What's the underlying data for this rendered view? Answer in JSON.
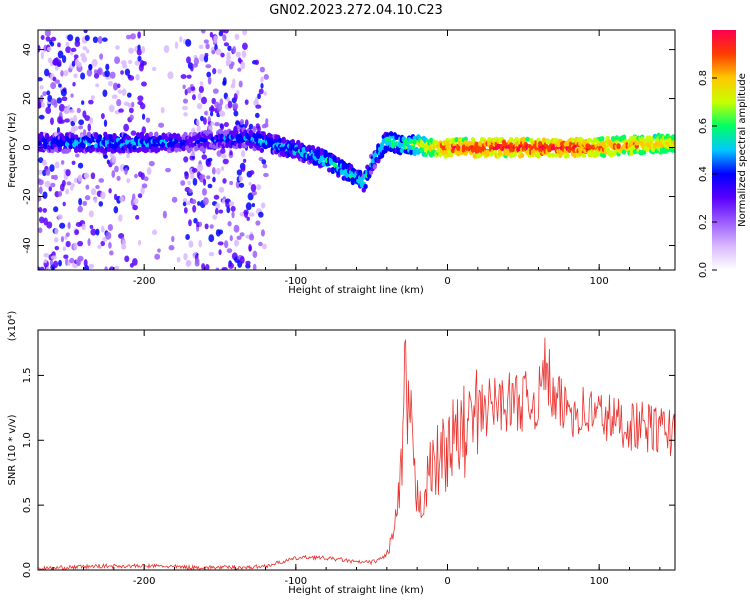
{
  "title": "GN02.2023.272.04.10.C23",
  "chart_data": [
    {
      "type": "heatmap",
      "xlabel": "Height of straight line (km)",
      "ylabel": "Frequency (Hz)",
      "xlim": [
        -270,
        150
      ],
      "ylim": [
        -50,
        48
      ],
      "x_ticks": [
        -200,
        -100,
        0,
        100
      ],
      "x_tick_labels": [
        "-200",
        "-100",
        "0",
        "100"
      ],
      "y_ticks": [
        -40,
        -20,
        0,
        20,
        40
      ],
      "y_tick_labels": [
        "-40",
        "-20",
        "0",
        "20",
        "40"
      ],
      "colorbar": {
        "label": "Normalized spectral amplitude",
        "range": [
          0,
          1
        ],
        "ticks": [
          0,
          0.2,
          0.4,
          0.6,
          0.8
        ],
        "tick_labels": [
          "0.0",
          "0.2",
          "0.4",
          "0.6",
          "0.8"
        ],
        "colors": [
          "#ffffff",
          "#d9b8ff",
          "#9b5cff",
          "#5a00ff",
          "#0000ff",
          "#00c8ff",
          "#00ff64",
          "#c8ff00",
          "#ffc800",
          "#ff3c00",
          "#ff0050"
        ]
      },
      "ridge": {
        "x": [
          -260,
          -240,
          -220,
          -200,
          -180,
          -175,
          -135,
          -120,
          -100,
          -90,
          -80,
          -70,
          -60,
          -55,
          -50,
          -45,
          -40,
          -35,
          -30,
          -20,
          -10,
          0,
          20,
          40,
          60,
          80,
          100,
          120,
          150
        ],
        "frequency_hz": [
          2,
          2,
          2,
          2,
          2,
          2,
          4,
          2,
          -1,
          -3,
          -5,
          -9,
          -12,
          -15,
          -6,
          -2,
          3,
          2,
          1,
          1,
          0,
          0,
          0,
          0,
          0,
          0,
          0,
          1,
          2
        ],
        "amplitude": [
          0.45,
          0.5,
          0.5,
          0.5,
          0.45,
          0.4,
          0.45,
          0.5,
          0.5,
          0.5,
          0.55,
          0.55,
          0.55,
          0.55,
          0.5,
          0.55,
          0.6,
          0.6,
          0.6,
          0.7,
          0.8,
          0.9,
          0.95,
          0.95,
          0.95,
          0.95,
          0.9,
          0.85,
          0.8
        ]
      }
    },
    {
      "type": "line",
      "xlabel": "Height of straight line (km)",
      "ylabel": "SNR (10 * v/v)",
      "scale_label": "(x10⁴)",
      "xlim": [
        -270,
        150
      ],
      "ylim": [
        0,
        1.85
      ],
      "x_ticks": [
        -200,
        -100,
        0,
        100
      ],
      "x_tick_labels": [
        "-200",
        "-100",
        "0",
        "100"
      ],
      "y_ticks": [
        0,
        0.5,
        1.0,
        1.5
      ],
      "y_tick_labels": [
        "0.0",
        "0.5",
        "1.0",
        "1.5"
      ],
      "color": "#e8322e",
      "series": [
        {
          "x": [
            -270,
            -250,
            -230,
            -210,
            -190,
            -170,
            -150,
            -130,
            -120,
            -110,
            -100,
            -90,
            -80,
            -70,
            -60,
            -50,
            -45,
            -40,
            -35,
            -30,
            -28,
            -25,
            -22,
            -20,
            -15,
            -10,
            -5,
            0,
            10,
            20,
            30,
            40,
            50,
            60,
            65,
            70,
            80,
            90,
            100,
            110,
            120,
            130,
            140,
            150
          ],
          "values": [
            0.01,
            0.02,
            0.03,
            0.03,
            0.03,
            0.02,
            0.02,
            0.02,
            0.03,
            0.06,
            0.09,
            0.1,
            0.09,
            0.08,
            0.06,
            0.06,
            0.08,
            0.12,
            0.3,
            0.75,
            1.4,
            1.2,
            0.7,
            0.55,
            0.6,
            0.8,
            0.85,
            0.95,
            1.05,
            1.2,
            1.28,
            1.3,
            1.3,
            1.3,
            1.6,
            1.28,
            1.25,
            1.22,
            1.2,
            1.15,
            1.12,
            1.1,
            1.08,
            1.06
          ]
        }
      ]
    }
  ]
}
